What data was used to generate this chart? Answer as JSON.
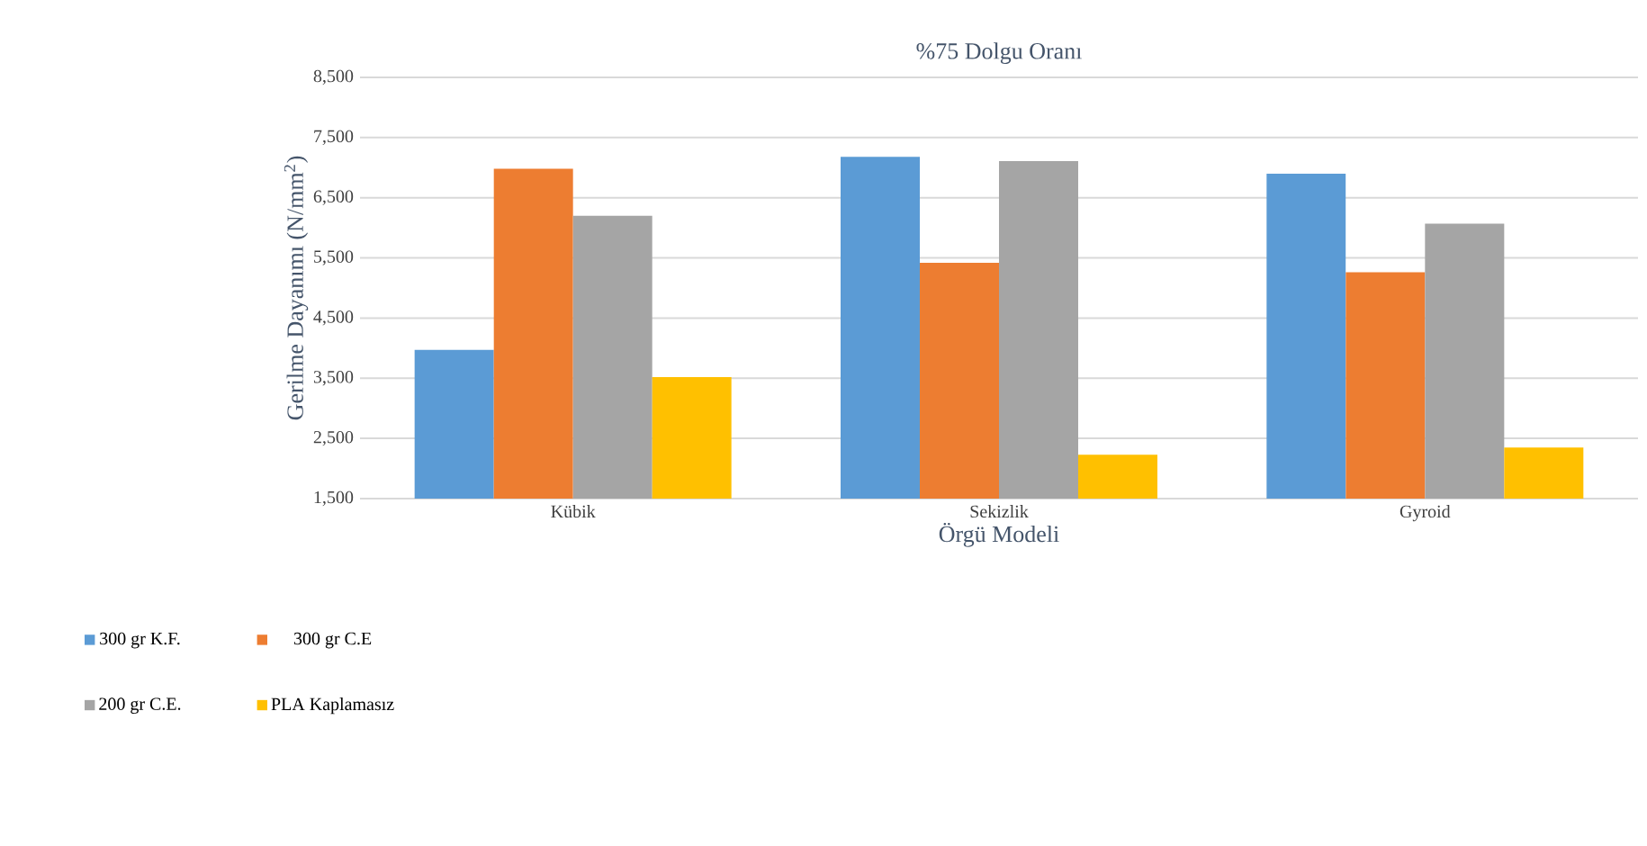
{
  "chart_data": {
    "type": "bar",
    "title": "%75 Dolgu Oranı",
    "xlabel": "Örgü Modeli",
    "ylabel": "Gerilme Dayanımı (N/mm$^{2}$)",
    "categories": [
      "Kübik",
      "Sekizlik",
      "Gyroid"
    ],
    "series": [
      {
        "name": "300 gr K.F.",
        "color": "#5b9bd5",
        "values": [
          3970,
          7180,
          6900
        ]
      },
      {
        "name": "300 gr C.E",
        "color": "#ed7d31",
        "values": [
          6980,
          5420,
          5260
        ]
      },
      {
        "name": "200 gr C.E.",
        "color": "#a5a5a5",
        "values": [
          6200,
          7110,
          6070
        ]
      },
      {
        "name": "PLA Kaplamasız",
        "color": "#ffc000",
        "values": [
          3520,
          2230,
          2350
        ]
      }
    ],
    "ylim": [
      1500,
      8500
    ],
    "yticks": [
      {
        "value": 1500,
        "label": "1,500"
      },
      {
        "value": 2500,
        "label": "2,500"
      },
      {
        "value": 3500,
        "label": "3,500"
      },
      {
        "value": 4500,
        "label": "4,500"
      },
      {
        "value": 5500,
        "label": "5,500"
      },
      {
        "value": 6500,
        "label": "6,500"
      },
      {
        "value": 7500,
        "label": "7,500"
      },
      {
        "value": 8500,
        "label": "8,500"
      }
    ],
    "grid": "y",
    "legend": "bottom left"
  }
}
